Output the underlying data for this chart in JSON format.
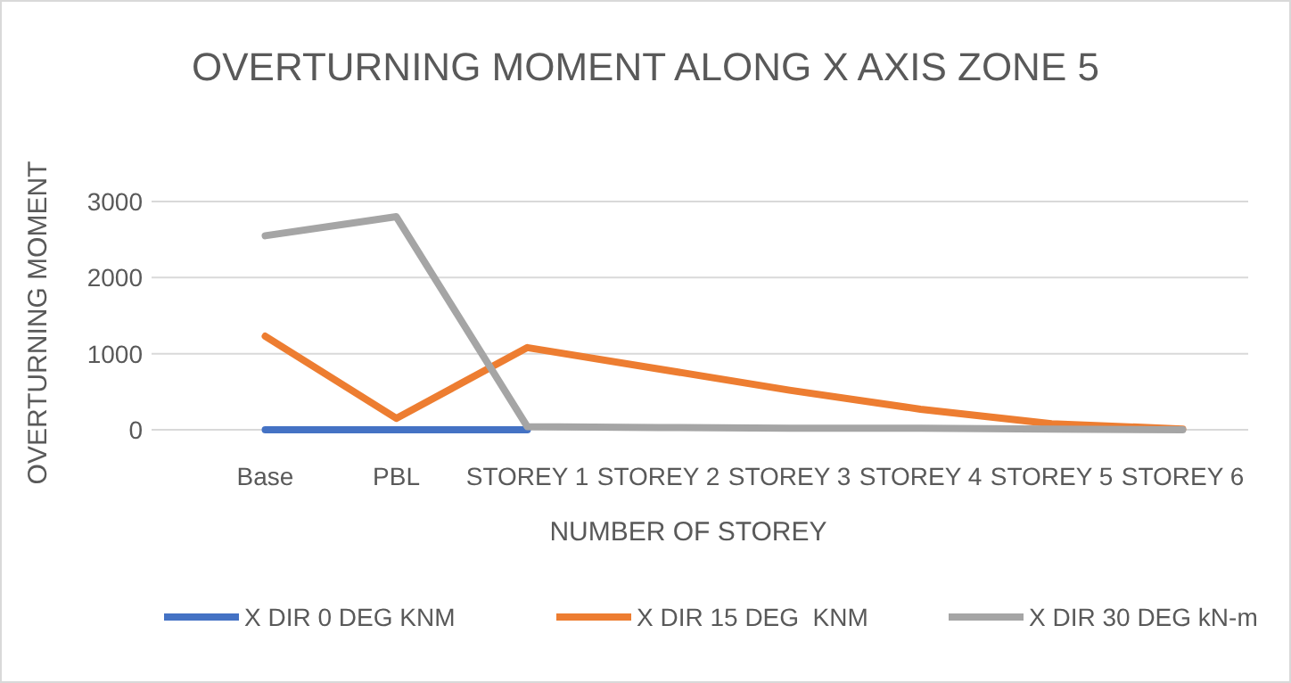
{
  "chart_data": {
    "type": "line",
    "title": "OVERTURNING MOMENT ALONG X AXIS ZONE 5",
    "xlabel": "NUMBER OF STOREY",
    "ylabel": "OVERTURNING MOMENT",
    "categories": [
      "Base",
      "PBL",
      "STOREY 1",
      "STOREY 2",
      "STOREY 3",
      "STOREY 4",
      "STOREY 5",
      "STOREY 6"
    ],
    "series": [
      {
        "name": "X DIR 0 DEG KNM",
        "color": "#4472c4",
        "values": [
          0,
          0,
          0,
          null,
          null,
          null,
          null,
          null
        ]
      },
      {
        "name": "X DIR 15 DEG  KNM",
        "color": "#ed7d31",
        "values": [
          1230,
          150,
          1080,
          800,
          520,
          270,
          80,
          10
        ]
      },
      {
        "name": "X DIR 30 DEG kN-m",
        "color": "#a5a5a5",
        "values": [
          2550,
          2800,
          40,
          30,
          20,
          20,
          10,
          0
        ]
      }
    ],
    "ylim": [
      0,
      3000
    ],
    "yticks": [
      0,
      1000,
      2000,
      3000
    ],
    "grid": "y",
    "legend": "bottom",
    "marker": "none",
    "line_style": "solid"
  }
}
